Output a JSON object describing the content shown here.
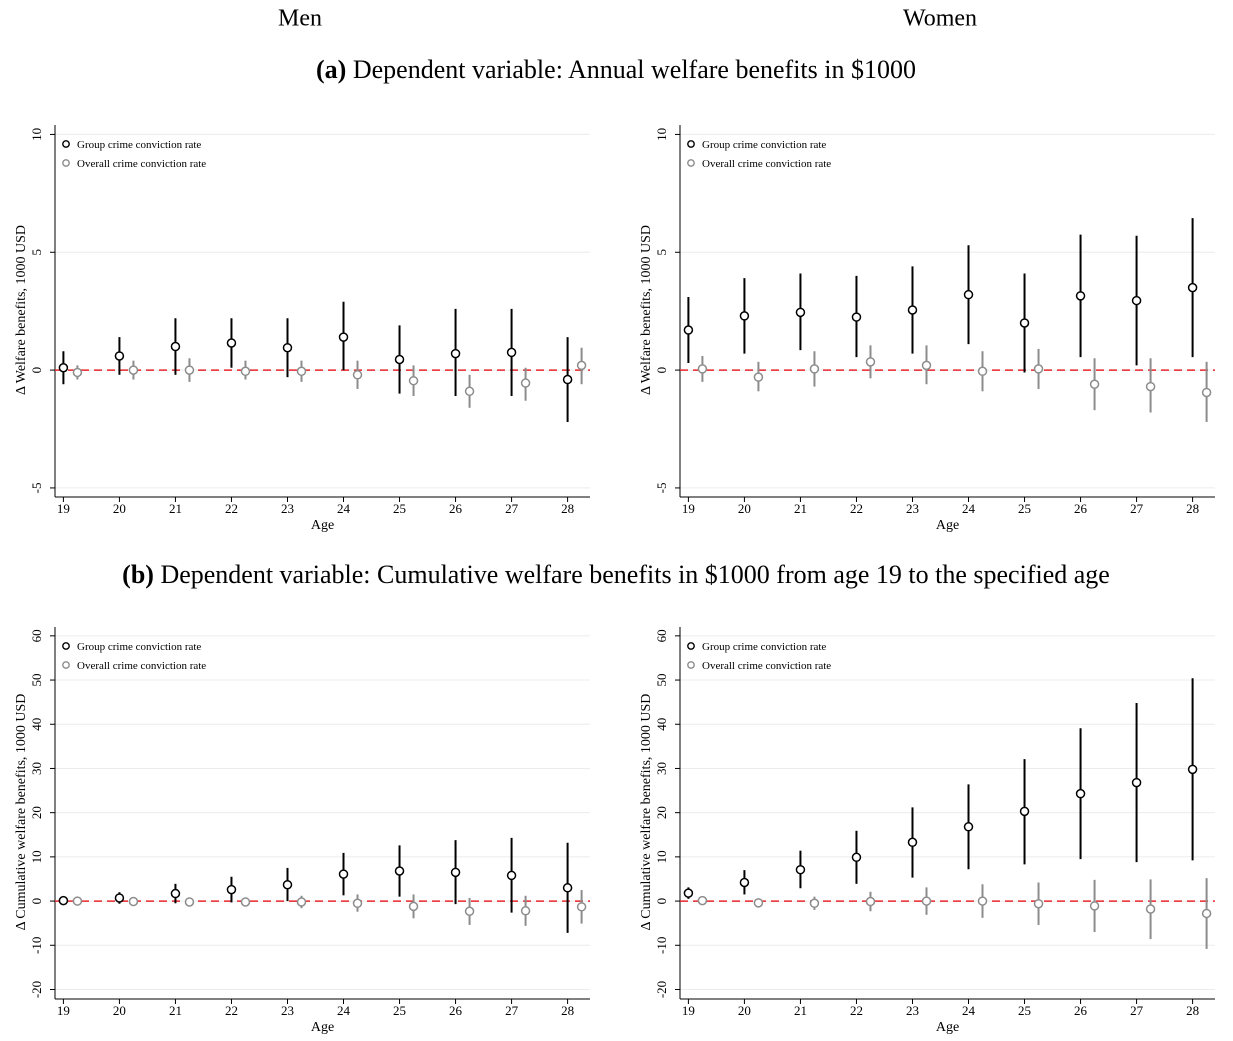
{
  "column_titles": [
    "Men",
    "Women"
  ],
  "captions": [
    {
      "label": "(a)",
      "text": "Dependent variable: Annual welfare benefits in $1000"
    },
    {
      "label": "(b)",
      "text": "Dependent variable: Cumulative welfare benefits in $1000 from age 19 to the specified age"
    }
  ],
  "chart_data": [
    {
      "type": "errorbar",
      "xlabel": "Age",
      "ylabel": "Δ Welfare benefits, 1000 USD",
      "x": [
        19,
        20,
        21,
        22,
        23,
        24,
        25,
        26,
        27,
        28
      ],
      "xlim": [
        18.85,
        28.4
      ],
      "xticks": [
        19,
        20,
        21,
        22,
        23,
        24,
        25,
        26,
        27,
        28
      ],
      "ylim": [
        -5.3,
        10.4
      ],
      "yticks": [
        -5,
        0,
        5,
        10
      ],
      "grid": true,
      "legend": "top-left",
      "reference_line": {
        "value": 0,
        "color": "#e8262a"
      },
      "series": [
        {
          "name": "Group crime conviction rate",
          "color": "#000000",
          "values": [
            0.1,
            0.6,
            1.0,
            1.15,
            0.95,
            1.4,
            0.45,
            0.7,
            0.75,
            -0.4
          ],
          "lower": [
            -0.6,
            -0.2,
            -0.2,
            0.1,
            -0.3,
            0,
            -1.0,
            -1.1,
            -1.1,
            -2.2
          ],
          "upper": [
            0.8,
            1.4,
            2.2,
            2.2,
            2.2,
            2.9,
            1.9,
            2.6,
            2.6,
            1.4
          ]
        },
        {
          "name": "Overall crime conviction rate",
          "color": "#8c8c8c",
          "values": [
            -0.1,
            0.0,
            0,
            -0.05,
            -0.05,
            -0.2,
            -0.45,
            -0.9,
            -0.55,
            0.2
          ],
          "lower": [
            -0.4,
            -0.4,
            -0.5,
            -0.4,
            -0.5,
            -0.8,
            -1.1,
            -1.6,
            -1.3,
            -0.6
          ],
          "upper": [
            0.2,
            0.4,
            0.5,
            0.4,
            0.4,
            0.4,
            0.2,
            -0.2,
            0.1,
            0.95
          ]
        }
      ]
    },
    {
      "type": "errorbar",
      "xlabel": "Age",
      "ylabel": "Δ Welfare benefits, 1000 USD",
      "x": [
        19,
        20,
        21,
        22,
        23,
        24,
        25,
        26,
        27,
        28
      ],
      "xlim": [
        18.85,
        28.4
      ],
      "xticks": [
        19,
        20,
        21,
        22,
        23,
        24,
        25,
        26,
        27,
        28
      ],
      "ylim": [
        -5.3,
        10.4
      ],
      "yticks": [
        -5,
        0,
        5,
        10
      ],
      "grid": true,
      "legend": "top-left",
      "reference_line": {
        "value": 0,
        "color": "#e8262a"
      },
      "series": [
        {
          "name": "Group crime conviction rate",
          "color": "#000000",
          "values": [
            1.7,
            2.3,
            2.45,
            2.25,
            2.55,
            3.2,
            2.0,
            3.15,
            2.95,
            3.5
          ],
          "lower": [
            0.3,
            0.7,
            0.85,
            0.55,
            0.7,
            1.1,
            -0.1,
            0.55,
            0.2,
            0.55
          ],
          "upper": [
            3.1,
            3.9,
            4.1,
            4.0,
            4.4,
            5.3,
            4.1,
            5.75,
            5.7,
            6.45
          ]
        },
        {
          "name": "Overall crime conviction rate",
          "color": "#8c8c8c",
          "values": [
            0.05,
            -0.3,
            0.05,
            0.35,
            0.2,
            -0.05,
            0.05,
            -0.6,
            -0.7,
            -0.95
          ],
          "lower": [
            -0.5,
            -0.9,
            -0.7,
            -0.35,
            -0.6,
            -0.9,
            -0.8,
            -1.7,
            -1.8,
            -2.2
          ],
          "upper": [
            0.6,
            0.35,
            0.8,
            1.05,
            1.05,
            0.8,
            0.9,
            0.5,
            0.5,
            0.35
          ]
        }
      ]
    },
    {
      "type": "errorbar",
      "xlabel": "Age",
      "ylabel": "Δ Cumulative welfare benefits, 1000 USD",
      "x": [
        19,
        20,
        21,
        22,
        23,
        24,
        25,
        26,
        27,
        28
      ],
      "xlim": [
        18.85,
        28.4
      ],
      "xticks": [
        19,
        20,
        21,
        22,
        23,
        24,
        25,
        26,
        27,
        28
      ],
      "ylim": [
        -21.7,
        62
      ],
      "yticks": [
        -20,
        -10,
        0,
        10,
        20,
        30,
        40,
        50,
        60
      ],
      "grid": true,
      "legend": "top-left",
      "reference_line": {
        "value": 0,
        "color": "#e8262a"
      },
      "series": [
        {
          "name": "Group crime conviction rate",
          "color": "#000000",
          "values": [
            0.1,
            0.7,
            1.7,
            2.6,
            3.7,
            6.1,
            6.8,
            6.5,
            5.8,
            3.0
          ],
          "lower": [
            -0.5,
            -0.6,
            -0.5,
            -0.3,
            0,
            1.3,
            1,
            -0.7,
            -2.6,
            -7.2
          ],
          "upper": [
            0.6,
            2.0,
            3.9,
            5.5,
            7.5,
            10.9,
            12.6,
            13.8,
            14.3,
            13.2
          ]
        },
        {
          "name": "Overall crime conviction rate",
          "color": "#8c8c8c",
          "values": [
            0,
            -0.1,
            -0.2,
            -0.2,
            -0.2,
            -0.5,
            -1.2,
            -2.3,
            -2.2,
            -1.3
          ],
          "lower": [
            -0.3,
            -0.6,
            -1,
            -1.2,
            -1.6,
            -2.4,
            -3.9,
            -5.4,
            -5.6,
            -5.1
          ],
          "upper": [
            0.3,
            0.5,
            0.6,
            0.8,
            1.2,
            1.5,
            1.5,
            0.7,
            1.2,
            2.5
          ]
        }
      ]
    },
    {
      "type": "errorbar",
      "xlabel": "Age",
      "ylabel": "Δ Cumulative welfare benefits, 1000 USD",
      "x": [
        19,
        20,
        21,
        22,
        23,
        24,
        25,
        26,
        27,
        28
      ],
      "xlim": [
        18.85,
        28.4
      ],
      "xticks": [
        19,
        20,
        21,
        22,
        23,
        24,
        25,
        26,
        27,
        28
      ],
      "ylim": [
        -21.7,
        62
      ],
      "yticks": [
        -20,
        -10,
        0,
        10,
        20,
        30,
        40,
        50,
        60
      ],
      "grid": true,
      "legend": "top-left",
      "reference_line": {
        "value": 0,
        "color": "#e8262a"
      },
      "series": [
        {
          "name": "Group crime conviction rate",
          "color": "#000000",
          "values": [
            1.8,
            4.2,
            7.1,
            9.9,
            13.3,
            16.8,
            20.3,
            24.3,
            26.8,
            29.8
          ],
          "lower": [
            0.5,
            1.5,
            2.9,
            3.9,
            5.3,
            7.2,
            8.3,
            9.5,
            8.8,
            9.2
          ],
          "upper": [
            3.1,
            7,
            11.4,
            15.9,
            21.2,
            26.4,
            32.1,
            39.1,
            44.8,
            50.4
          ]
        },
        {
          "name": "Overall crime conviction rate",
          "color": "#8c8c8c",
          "values": [
            0.1,
            -0.4,
            -0.5,
            -0.1,
            0,
            0,
            -0.6,
            -1.1,
            -1.8,
            -2.8
          ],
          "lower": [
            -0.4,
            -1.4,
            -2,
            -2.3,
            -3.1,
            -3.8,
            -5.4,
            -7,
            -8.6,
            -10.8
          ],
          "upper": [
            0.6,
            0.6,
            1,
            2.1,
            3.1,
            3.8,
            4.2,
            4.8,
            4.9,
            5.2
          ]
        }
      ]
    }
  ]
}
